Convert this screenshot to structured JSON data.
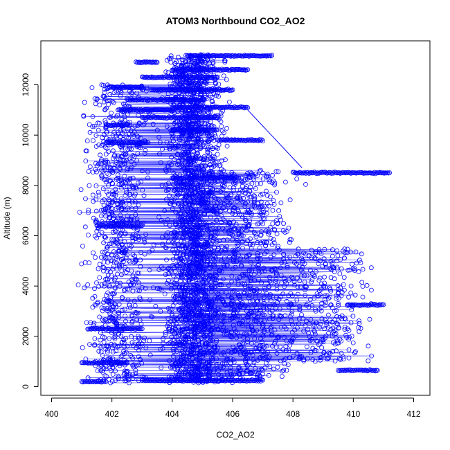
{
  "chart_data": {
    "type": "scatter",
    "title": "ATOM3 Northbound CO2_AO2",
    "xlabel": "CO2_AO2",
    "ylabel": "Altitude (m)",
    "xlim": [
      400,
      412
    ],
    "ylim": [
      0,
      13000
    ],
    "x_ticks": [
      400,
      402,
      404,
      406,
      408,
      410,
      412
    ],
    "y_ticks": [
      0,
      2000,
      4000,
      6000,
      8000,
      10000,
      12000
    ],
    "grid": false,
    "legend": "none",
    "marker": "open-circle",
    "connected": true,
    "series_color": "#0000ff",
    "clusters": [
      {
        "x_center": 404.7,
        "x_spread": 0.9,
        "y_min": 150,
        "y_max": 13200,
        "n": 2200
      },
      {
        "x_center": 402.2,
        "x_spread": 1.0,
        "y_min": 150,
        "y_max": 12000,
        "n": 900
      },
      {
        "x_center": 406.5,
        "x_spread": 1.4,
        "y_min": 300,
        "y_max": 8600,
        "n": 800
      },
      {
        "x_center": 409.0,
        "x_spread": 1.5,
        "y_min": 1000,
        "y_max": 5500,
        "n": 350
      }
    ],
    "horizontal_runs": [
      {
        "y": 13150,
        "x_min": 404.5,
        "x_max": 407.3
      },
      {
        "y": 12900,
        "x_min": 402.8,
        "x_max": 403.5
      },
      {
        "y": 12600,
        "x_min": 404.0,
        "x_max": 406.5
      },
      {
        "y": 12300,
        "x_min": 403.0,
        "x_max": 405.5
      },
      {
        "y": 11900,
        "x_min": 402.0,
        "x_max": 403.0
      },
      {
        "y": 11800,
        "x_min": 403.3,
        "x_max": 406.0
      },
      {
        "y": 11400,
        "x_min": 402.5,
        "x_max": 405.0
      },
      {
        "y": 11100,
        "x_min": 404.0,
        "x_max": 406.5
      },
      {
        "y": 11000,
        "x_min": 402.2,
        "x_max": 404.0
      },
      {
        "y": 10700,
        "x_min": 403.0,
        "x_max": 405.5
      },
      {
        "y": 10400,
        "x_min": 401.8,
        "x_max": 402.6
      },
      {
        "y": 10200,
        "x_min": 404.0,
        "x_max": 405.5
      },
      {
        "y": 9800,
        "x_min": 405.5,
        "x_max": 407.0
      },
      {
        "y": 9700,
        "x_min": 401.8,
        "x_max": 403.2
      },
      {
        "y": 8500,
        "x_min": 408.0,
        "x_max": 411.2
      },
      {
        "y": 8300,
        "x_min": 404.0,
        "x_max": 406.2
      },
      {
        "y": 6400,
        "x_min": 401.5,
        "x_max": 403.0
      },
      {
        "y": 3250,
        "x_min": 409.8,
        "x_max": 411.0
      },
      {
        "y": 2300,
        "x_min": 401.2,
        "x_max": 403.0
      },
      {
        "y": 950,
        "x_min": 401.0,
        "x_max": 402.5
      },
      {
        "y": 650,
        "x_min": 409.5,
        "x_max": 410.8
      },
      {
        "y": 250,
        "x_min": 403.0,
        "x_max": 407.0
      },
      {
        "y": 200,
        "x_min": 401.0,
        "x_max": 401.8
      }
    ]
  }
}
